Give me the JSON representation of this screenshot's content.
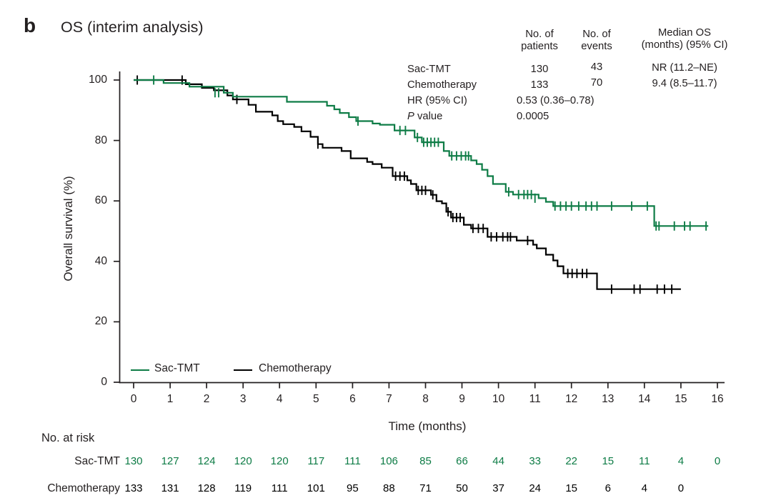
{
  "panel": {
    "label": "b",
    "title": "OS (interim analysis)"
  },
  "colors": {
    "sac_tmt_green": "#0e7c46",
    "chemotherapy_black": "#000000",
    "axis": "#231f20",
    "background": "#ffffff"
  },
  "stats": {
    "col_patients": "No. of\npatients",
    "col_events": "No. of\nevents",
    "col_median": "Median OS\n(months) (95% CI)",
    "rows": [
      {
        "label": "Sac-TMT",
        "patients": "130",
        "events": "43",
        "median": "NR (11.2–NE)"
      },
      {
        "label": "Chemotherapy",
        "patients": "133",
        "events": "70",
        "median": "9.4 (8.5–11.7)"
      }
    ],
    "hr_label": "HR (95% CI)",
    "hr_value": "0.53 (0.36–0.78)",
    "p_label_italic": "P",
    "p_label_rest": " value",
    "p_value": "0.0005"
  },
  "chart_data": {
    "type": "line",
    "subtype": "kaplan-meier-step",
    "title": "OS (interim analysis)",
    "xlabel": "Time (months)",
    "ylabel": "Overall survival (%)",
    "xlim": [
      0,
      16
    ],
    "ylim": [
      0,
      100
    ],
    "xticks": [
      0,
      1,
      2,
      3,
      4,
      5,
      6,
      7,
      8,
      9,
      10,
      11,
      12,
      13,
      14,
      15,
      16
    ],
    "yticks": [
      0,
      20,
      40,
      60,
      80,
      100
    ],
    "grid": false,
    "legend_position": "inside-bottom-left",
    "legend": [
      {
        "name": "Sac-TMT",
        "color": "#0e7c46"
      },
      {
        "name": "Chemotherapy",
        "color": "#000000"
      }
    ],
    "series": [
      {
        "name": "Sac-TMT",
        "color": "#0e7c46",
        "end_time": 15.75,
        "steps": [
          [
            0,
            100
          ],
          [
            0.82,
            99.0
          ],
          [
            1.53,
            97.8
          ],
          [
            2.47,
            95.8
          ],
          [
            2.72,
            94.5
          ],
          [
            4.2,
            92.8
          ],
          [
            5.3,
            91.5
          ],
          [
            5.5,
            90.3
          ],
          [
            5.65,
            89.1
          ],
          [
            5.9,
            87.7
          ],
          [
            6.1,
            86.4
          ],
          [
            6.55,
            85.6
          ],
          [
            6.75,
            85.2
          ],
          [
            7.15,
            83.3
          ],
          [
            7.7,
            81.0
          ],
          [
            7.9,
            79.4
          ],
          [
            8.5,
            76.5
          ],
          [
            8.65,
            74.9
          ],
          [
            9.25,
            73.4
          ],
          [
            9.4,
            72.2
          ],
          [
            9.55,
            70.3
          ],
          [
            9.7,
            68.2
          ],
          [
            9.85,
            65.6
          ],
          [
            10.2,
            63.0
          ],
          [
            10.4,
            62.1
          ],
          [
            11.1,
            60.9
          ],
          [
            11.3,
            59.7
          ],
          [
            11.5,
            58.3
          ],
          [
            14.27,
            51.7
          ]
        ],
        "censors": [
          [
            0.55,
            100
          ],
          [
            2.23,
            95.8
          ],
          [
            2.33,
            95.8
          ],
          [
            6.15,
            86.4
          ],
          [
            7.3,
            83.3
          ],
          [
            7.45,
            83.3
          ],
          [
            7.78,
            81.0
          ],
          [
            7.95,
            79.4
          ],
          [
            8.05,
            79.4
          ],
          [
            8.15,
            79.4
          ],
          [
            8.25,
            79.4
          ],
          [
            8.35,
            79.4
          ],
          [
            8.72,
            74.9
          ],
          [
            8.85,
            74.9
          ],
          [
            8.98,
            74.9
          ],
          [
            9.1,
            74.9
          ],
          [
            9.18,
            74.9
          ],
          [
            10.28,
            63.0
          ],
          [
            10.55,
            62.1
          ],
          [
            10.7,
            62.1
          ],
          [
            10.8,
            62.1
          ],
          [
            10.9,
            62.1
          ],
          [
            11.0,
            60.9
          ],
          [
            11.55,
            58.3
          ],
          [
            11.7,
            58.3
          ],
          [
            11.85,
            58.3
          ],
          [
            12.0,
            58.3
          ],
          [
            12.2,
            58.3
          ],
          [
            12.4,
            58.3
          ],
          [
            12.55,
            58.3
          ],
          [
            12.7,
            58.3
          ],
          [
            13.1,
            58.3
          ],
          [
            13.65,
            58.3
          ],
          [
            14.08,
            58.3
          ],
          [
            14.32,
            51.7
          ],
          [
            14.4,
            51.7
          ],
          [
            14.82,
            51.7
          ],
          [
            15.1,
            51.7
          ],
          [
            15.25,
            51.7
          ],
          [
            15.69,
            51.7
          ]
        ]
      },
      {
        "name": "Chemotherapy",
        "color": "#000000",
        "end_time": 15.0,
        "steps": [
          [
            0,
            100
          ],
          [
            1.43,
            98.6
          ],
          [
            1.87,
            97.4
          ],
          [
            2.2,
            96.6
          ],
          [
            2.57,
            94.9
          ],
          [
            2.72,
            93.6
          ],
          [
            3.15,
            91.8
          ],
          [
            3.35,
            89.5
          ],
          [
            3.8,
            88.3
          ],
          [
            3.95,
            86.4
          ],
          [
            4.1,
            85.4
          ],
          [
            4.4,
            84.5
          ],
          [
            4.6,
            83.0
          ],
          [
            4.85,
            81.2
          ],
          [
            5.05,
            78.8
          ],
          [
            5.18,
            77.6
          ],
          [
            5.7,
            76.5
          ],
          [
            5.95,
            74.1
          ],
          [
            6.4,
            72.9
          ],
          [
            6.55,
            72.2
          ],
          [
            6.8,
            71.0
          ],
          [
            7.1,
            68.2
          ],
          [
            7.5,
            66.8
          ],
          [
            7.6,
            65.6
          ],
          [
            7.75,
            63.5
          ],
          [
            8.15,
            62.0
          ],
          [
            8.3,
            59.9
          ],
          [
            8.45,
            59.2
          ],
          [
            8.57,
            56.4
          ],
          [
            8.7,
            54.5
          ],
          [
            9.05,
            52.1
          ],
          [
            9.25,
            50.9
          ],
          [
            9.7,
            48.1
          ],
          [
            10.5,
            46.9
          ],
          [
            10.95,
            45.5
          ],
          [
            11.05,
            44.3
          ],
          [
            11.3,
            42.2
          ],
          [
            11.5,
            40.3
          ],
          [
            11.62,
            38.4
          ],
          [
            11.78,
            36.0
          ],
          [
            12.7,
            30.8
          ]
        ],
        "censors": [
          [
            0.1,
            100
          ],
          [
            1.33,
            100
          ],
          [
            2.83,
            93.6
          ],
          [
            5.05,
            78.8
          ],
          [
            7.18,
            68.2
          ],
          [
            7.3,
            68.2
          ],
          [
            7.42,
            68.2
          ],
          [
            7.8,
            63.5
          ],
          [
            7.9,
            63.5
          ],
          [
            8.0,
            63.5
          ],
          [
            8.2,
            62.0
          ],
          [
            8.62,
            56.4
          ],
          [
            8.75,
            54.5
          ],
          [
            8.85,
            54.5
          ],
          [
            8.95,
            54.5
          ],
          [
            9.3,
            50.9
          ],
          [
            9.45,
            50.9
          ],
          [
            9.58,
            50.9
          ],
          [
            9.8,
            48.1
          ],
          [
            9.95,
            48.1
          ],
          [
            10.12,
            48.1
          ],
          [
            10.25,
            48.1
          ],
          [
            10.33,
            48.1
          ],
          [
            10.8,
            46.9
          ],
          [
            11.9,
            36.0
          ],
          [
            12.02,
            36.0
          ],
          [
            12.15,
            36.0
          ],
          [
            12.3,
            36.0
          ],
          [
            12.42,
            36.0
          ],
          [
            13.1,
            30.8
          ],
          [
            13.72,
            30.8
          ],
          [
            13.88,
            30.8
          ],
          [
            14.35,
            30.8
          ],
          [
            14.55,
            30.8
          ],
          [
            14.75,
            30.8
          ]
        ]
      }
    ]
  },
  "risk_table": {
    "title": "No. at risk",
    "rows": [
      {
        "label": "Sac-TMT",
        "color": "#0e7c46",
        "values": [
          130,
          127,
          124,
          120,
          120,
          117,
          111,
          106,
          85,
          66,
          44,
          33,
          22,
          15,
          11,
          4,
          0
        ]
      },
      {
        "label": "Chemotherapy",
        "color": "#000000",
        "values": [
          133,
          131,
          128,
          119,
          111,
          101,
          95,
          88,
          71,
          50,
          37,
          24,
          15,
          6,
          4,
          0
        ]
      }
    ]
  }
}
